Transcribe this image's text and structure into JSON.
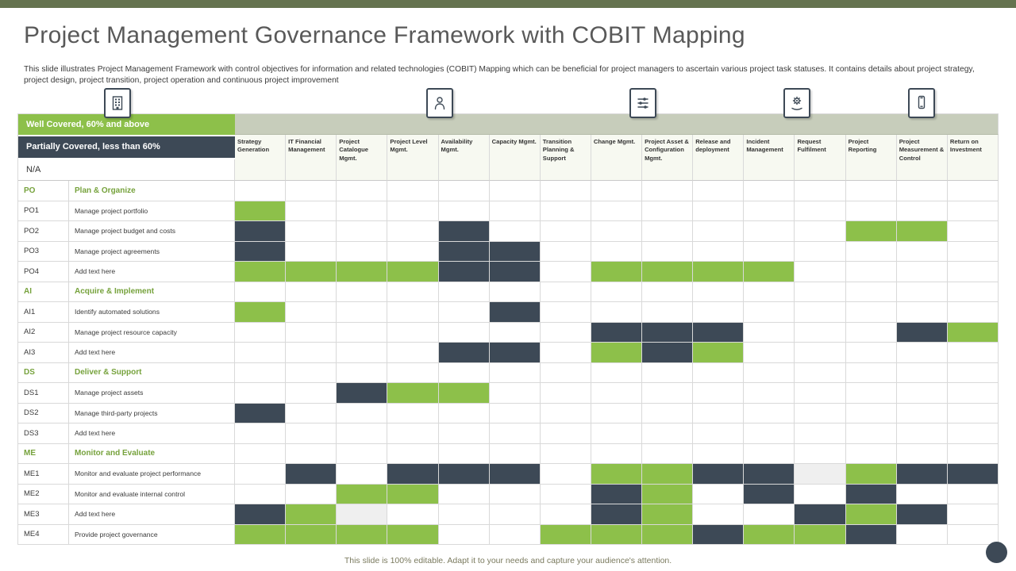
{
  "title": "Project Management Governance Framework with COBIT Mapping",
  "description": "This slide illustrates Project Management Framework with control objectives for information and related technologies (COBIT)  Mapping  which can be beneficial for project managers to ascertain various project task statuses. It contains details about project strategy, project design, project transition, project operation and continuous project improvement",
  "footer": "This slide is 100% editable.  Adapt it to your needs and capture your audience's attention.",
  "icons": [
    "building-icon",
    "person-icon",
    "sliders-icon",
    "gear-hand-icon",
    "mobile-icon"
  ],
  "colors": {
    "well_covered": "#8DC04A",
    "partially_covered": "#3D4956",
    "na_cell": "#EFEFEF",
    "header_band": "#C7CDBB",
    "top_bar": "#65734F",
    "group_text": "#76A23C"
  },
  "legend": {
    "items": [
      {
        "label": "Well Covered, 60% and above",
        "key": "well_covered"
      },
      {
        "label": "Partially Covered,  less than 60%",
        "key": "partially_covered"
      },
      {
        "label": "N/A",
        "key": "not_applicable"
      }
    ]
  },
  "matrix": {
    "cell_codes": {
      "g": "well_covered",
      "d": "partially_covered",
      "l": "na",
      "": "empty"
    },
    "columns": [
      "Strategy Generation",
      "IT Financial Management",
      "Project Catalogue Mgmt.",
      "Project Level Mgmt.",
      "Availability Mgmt.",
      "Capacity Mgmt.",
      "Transition Planning & Support",
      "Change Mgmt.",
      "Project Asset & Configuration Mgmt.",
      "Release and deployment",
      "Incident Management",
      "Request Fulfilment",
      "Project Reporting",
      "Project Measurement & Control",
      "Return on Investment"
    ],
    "rows": [
      {
        "code": "PO",
        "label": "Plan & Organize",
        "type": "group",
        "cells": [
          "",
          "",
          "",
          "",
          "",
          "",
          "",
          "",
          "",
          "",
          "",
          "",
          "",
          "",
          ""
        ]
      },
      {
        "code": "PO1",
        "label": "Manage project portfolio",
        "type": "item",
        "cells": [
          "g",
          "",
          "",
          "",
          "",
          "",
          "",
          "",
          "",
          "",
          "",
          "",
          "",
          "",
          ""
        ]
      },
      {
        "code": "PO2",
        "label": "Manage project budget and costs",
        "type": "item",
        "cells": [
          "d",
          "",
          "",
          "",
          "d",
          "",
          "",
          "",
          "",
          "",
          "",
          "",
          "g",
          "g",
          ""
        ]
      },
      {
        "code": "PO3",
        "label": "Manage project agreements",
        "type": "item",
        "cells": [
          "d",
          "",
          "",
          "",
          "d",
          "d",
          "",
          "",
          "",
          "",
          "",
          "",
          "",
          "",
          ""
        ]
      },
      {
        "code": "PO4",
        "label": "Add text here",
        "type": "item",
        "cells": [
          "g",
          "g",
          "g",
          "g",
          "d",
          "d",
          "",
          "g",
          "g",
          "g",
          "g",
          "",
          "",
          "",
          ""
        ]
      },
      {
        "code": "AI",
        "label": "Acquire & Implement",
        "type": "group",
        "cells": [
          "",
          "",
          "",
          "",
          "",
          "",
          "",
          "",
          "",
          "",
          "",
          "",
          "",
          "",
          ""
        ]
      },
      {
        "code": "AI1",
        "label": "Identify automated solutions",
        "type": "item",
        "cells": [
          "g",
          "",
          "",
          "",
          "",
          "d",
          "",
          "",
          "",
          "",
          "",
          "",
          "",
          "",
          ""
        ]
      },
      {
        "code": "AI2",
        "label": "Manage project resource capacity",
        "type": "item",
        "cells": [
          "",
          "",
          "",
          "",
          "",
          "",
          "",
          "d",
          "d",
          "d",
          "",
          "",
          "",
          "d",
          "g"
        ]
      },
      {
        "code": "AI3",
        "label": "Add text here",
        "type": "item",
        "cells": [
          "",
          "",
          "",
          "",
          "d",
          "d",
          "",
          "g",
          "d",
          "g",
          "",
          "",
          "",
          "",
          ""
        ]
      },
      {
        "code": "DS",
        "label": "Deliver & Support",
        "type": "group",
        "cells": [
          "",
          "",
          "",
          "",
          "",
          "",
          "",
          "",
          "",
          "",
          "",
          "",
          "",
          "",
          ""
        ]
      },
      {
        "code": "DS1",
        "label": "Manage project assets",
        "type": "item",
        "cells": [
          "",
          "",
          "d",
          "g",
          "g",
          "",
          "",
          "",
          "",
          "",
          "",
          "",
          "",
          "",
          ""
        ]
      },
      {
        "code": "DS2",
        "label": "Manage third-party projects",
        "type": "item",
        "cells": [
          "d",
          "",
          "",
          "",
          "",
          "",
          "",
          "",
          "",
          "",
          "",
          "",
          "",
          "",
          ""
        ]
      },
      {
        "code": "DS3",
        "label": "Add text here",
        "type": "item",
        "cells": [
          "",
          "",
          "",
          "",
          "",
          "",
          "",
          "",
          "",
          "",
          "",
          "",
          "",
          "",
          ""
        ]
      },
      {
        "code": "ME",
        "label": "Monitor and Evaluate",
        "type": "group",
        "cells": [
          "",
          "",
          "",
          "",
          "",
          "",
          "",
          "",
          "",
          "",
          "",
          "",
          "",
          "",
          ""
        ]
      },
      {
        "code": "ME1",
        "label": "Monitor and evaluate project performance",
        "type": "item",
        "cells": [
          "",
          "d",
          "",
          "d",
          "d",
          "d",
          "",
          "g",
          "g",
          "d",
          "d",
          "l",
          "g",
          "d",
          "d"
        ]
      },
      {
        "code": "ME2",
        "label": "Monitor and evaluate internal control",
        "type": "item",
        "cells": [
          "",
          "",
          "g",
          "g",
          "",
          "",
          "",
          "d",
          "g",
          "",
          "d",
          "",
          "d",
          "",
          ""
        ]
      },
      {
        "code": "ME3",
        "label": "Add text here",
        "type": "item",
        "cells": [
          "d",
          "g",
          "l",
          "",
          "",
          "",
          "",
          "d",
          "g",
          "",
          "",
          "d",
          "g",
          "d",
          ""
        ]
      },
      {
        "code": "ME4",
        "label": "Provide project governance",
        "type": "item",
        "cells": [
          "g",
          "g",
          "g",
          "g",
          "",
          "",
          "g",
          "g",
          "g",
          "d",
          "g",
          "g",
          "d",
          "",
          ""
        ]
      }
    ]
  }
}
